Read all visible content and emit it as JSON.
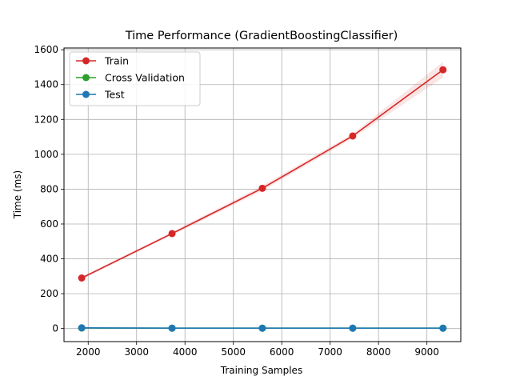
{
  "chart_data": {
    "type": "line",
    "title": "Time Performance (GradientBoostingClassifier)",
    "xlabel": "Training Samples",
    "ylabel": "Time (ms)",
    "xlim": [
      1500,
      9700
    ],
    "ylim": [
      -75,
      1610
    ],
    "xticks": [
      2000,
      3000,
      4000,
      5000,
      6000,
      7000,
      8000,
      9000
    ],
    "yticks": [
      0,
      200,
      400,
      600,
      800,
      1000,
      1200,
      1400,
      1600
    ],
    "grid": true,
    "legend_position": "upper-left",
    "x": [
      1866,
      3733,
      5599,
      7466,
      9332
    ],
    "series": [
      {
        "name": "Train",
        "color": "#d62728",
        "values": [
          290,
          545,
          805,
          1105,
          1485
        ],
        "band_lower": [
          282,
          535,
          790,
          1092,
          1440
        ],
        "band_upper": [
          298,
          555,
          820,
          1118,
          1530
        ]
      },
      {
        "name": "Cross Validation",
        "color": "#2ca02c",
        "values": [
          3,
          2,
          2,
          2,
          2
        ]
      },
      {
        "name": "Test",
        "color": "#1f77b4",
        "values": [
          4,
          2,
          2,
          2,
          2
        ]
      }
    ]
  }
}
